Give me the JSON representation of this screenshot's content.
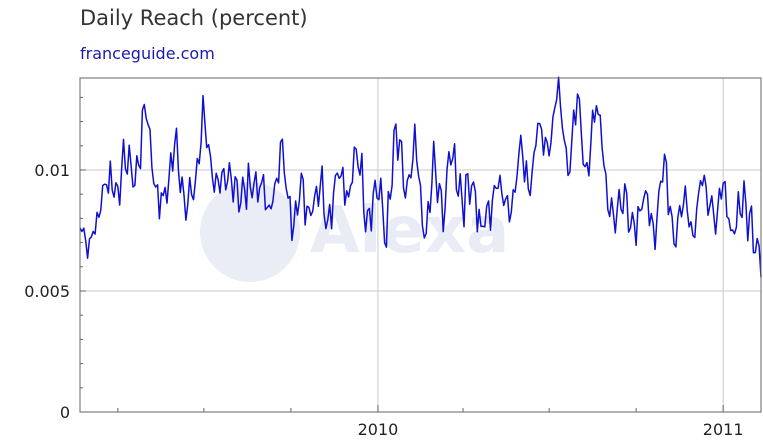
{
  "colors": {
    "series": "#1010d0",
    "subtitle": "#1a1ab0",
    "grid": "#c8c8c8",
    "axis": "#666666",
    "watermark": "#d8dcee"
  },
  "chart_data": {
    "type": "line",
    "title": "Daily Reach (percent)",
    "subtitle": "franceguide.com",
    "xlabel": "",
    "ylabel": "",
    "xlim": [
      "2009-02-20",
      "2011-02-10"
    ],
    "ylim": [
      0,
      0.0138
    ],
    "x_ticks": [
      {
        "date": "2010-01-01",
        "label": "2010"
      },
      {
        "date": "2011-01-01",
        "label": "2011"
      }
    ],
    "x_minor_ticks": [
      "2009-04-01",
      "2009-07-01",
      "2009-10-01",
      "2010-04-01",
      "2010-07-01",
      "2010-10-01"
    ],
    "y_ticks": [
      {
        "value": 0,
        "label": "0"
      },
      {
        "value": 0.005,
        "label": "0.005"
      },
      {
        "value": 0.01,
        "label": "0.01"
      }
    ],
    "grid": true,
    "legend": "none",
    "watermark": "Alexa",
    "series": [
      {
        "x": [
          "2009-02-20",
          "2009-03-01",
          "2009-03-10",
          "2009-03-20",
          "2009-04-01",
          "2009-04-10",
          "2009-04-20",
          "2009-05-01",
          "2009-05-10",
          "2009-05-20",
          "2009-06-01",
          "2009-06-10",
          "2009-06-20",
          "2009-07-01",
          "2009-07-10",
          "2009-07-20",
          "2009-08-01",
          "2009-08-10",
          "2009-08-20",
          "2009-09-01",
          "2009-09-10",
          "2009-09-20",
          "2009-10-01",
          "2009-10-10",
          "2009-10-20",
          "2009-11-01",
          "2009-11-10",
          "2009-11-20",
          "2009-12-01",
          "2009-12-10",
          "2009-12-20",
          "2010-01-01",
          "2010-01-10",
          "2010-01-20",
          "2010-02-01",
          "2010-02-10",
          "2010-02-20",
          "2010-03-01",
          "2010-03-10",
          "2010-03-20",
          "2010-04-01",
          "2010-04-10",
          "2010-04-20",
          "2010-05-01",
          "2010-05-10",
          "2010-05-20",
          "2010-06-01",
          "2010-06-10",
          "2010-06-20",
          "2010-07-01",
          "2010-07-10",
          "2010-07-20",
          "2010-08-01",
          "2010-08-10",
          "2010-08-20",
          "2010-09-01",
          "2010-09-10",
          "2010-09-20",
          "2010-10-01",
          "2010-10-10",
          "2010-10-20",
          "2010-11-01",
          "2010-11-10",
          "2010-11-20",
          "2010-12-01",
          "2010-12-10",
          "2010-12-20",
          "2011-01-01",
          "2011-01-10",
          "2011-01-20",
          "2011-02-01",
          "2011-02-10"
        ],
        "values": [
          0.008,
          0.0069,
          0.0078,
          0.0098,
          0.0092,
          0.0106,
          0.0095,
          0.0129,
          0.0093,
          0.0086,
          0.0112,
          0.009,
          0.0088,
          0.0124,
          0.0099,
          0.009,
          0.0098,
          0.0088,
          0.0096,
          0.0091,
          0.0082,
          0.011,
          0.0079,
          0.0092,
          0.0084,
          0.0096,
          0.0079,
          0.0104,
          0.0085,
          0.0112,
          0.0081,
          0.0094,
          0.0072,
          0.0115,
          0.0088,
          0.011,
          0.0068,
          0.0103,
          0.0081,
          0.0109,
          0.0087,
          0.0098,
          0.0074,
          0.0086,
          0.0097,
          0.0083,
          0.0109,
          0.0094,
          0.012,
          0.0108,
          0.0133,
          0.0101,
          0.013,
          0.0094,
          0.0131,
          0.0087,
          0.008,
          0.009,
          0.0071,
          0.0092,
          0.0076,
          0.0103,
          0.0072,
          0.0089,
          0.0075,
          0.0103,
          0.0078,
          0.009,
          0.0074,
          0.0088,
          0.0076,
          0.0067
        ]
      }
    ]
  }
}
